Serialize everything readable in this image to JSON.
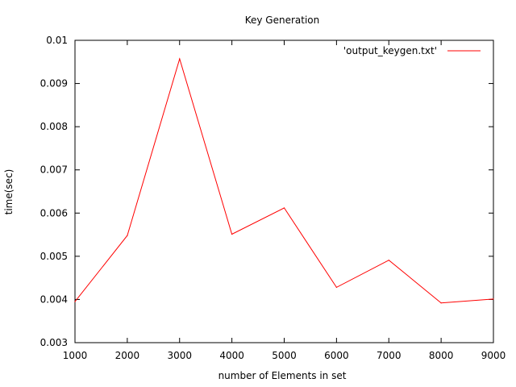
{
  "chart_data": {
    "type": "line",
    "title": "Key Generation",
    "xlabel": "number of Elements in set",
    "ylabel": "time(sec)",
    "xlim": [
      1000,
      9000
    ],
    "ylim": [
      0.003,
      0.01
    ],
    "x_ticks": [
      "1000",
      "2000",
      "3000",
      "4000",
      "5000",
      "6000",
      "7000",
      "8000",
      "9000"
    ],
    "y_ticks": [
      "0.003",
      "0.004",
      "0.005",
      "0.006",
      "0.007",
      "0.008",
      "0.009",
      "0.01"
    ],
    "grid": false,
    "legend_position": "top-right",
    "series": [
      {
        "name": "'output_keygen.txt'",
        "color": "#ff0000",
        "x": [
          1000,
          2000,
          3000,
          4000,
          5000,
          6000,
          7000,
          8000,
          9000
        ],
        "y": [
          0.00395,
          0.00548,
          0.00957,
          0.00551,
          0.00612,
          0.00428,
          0.00491,
          0.00392,
          0.00401
        ]
      }
    ]
  }
}
